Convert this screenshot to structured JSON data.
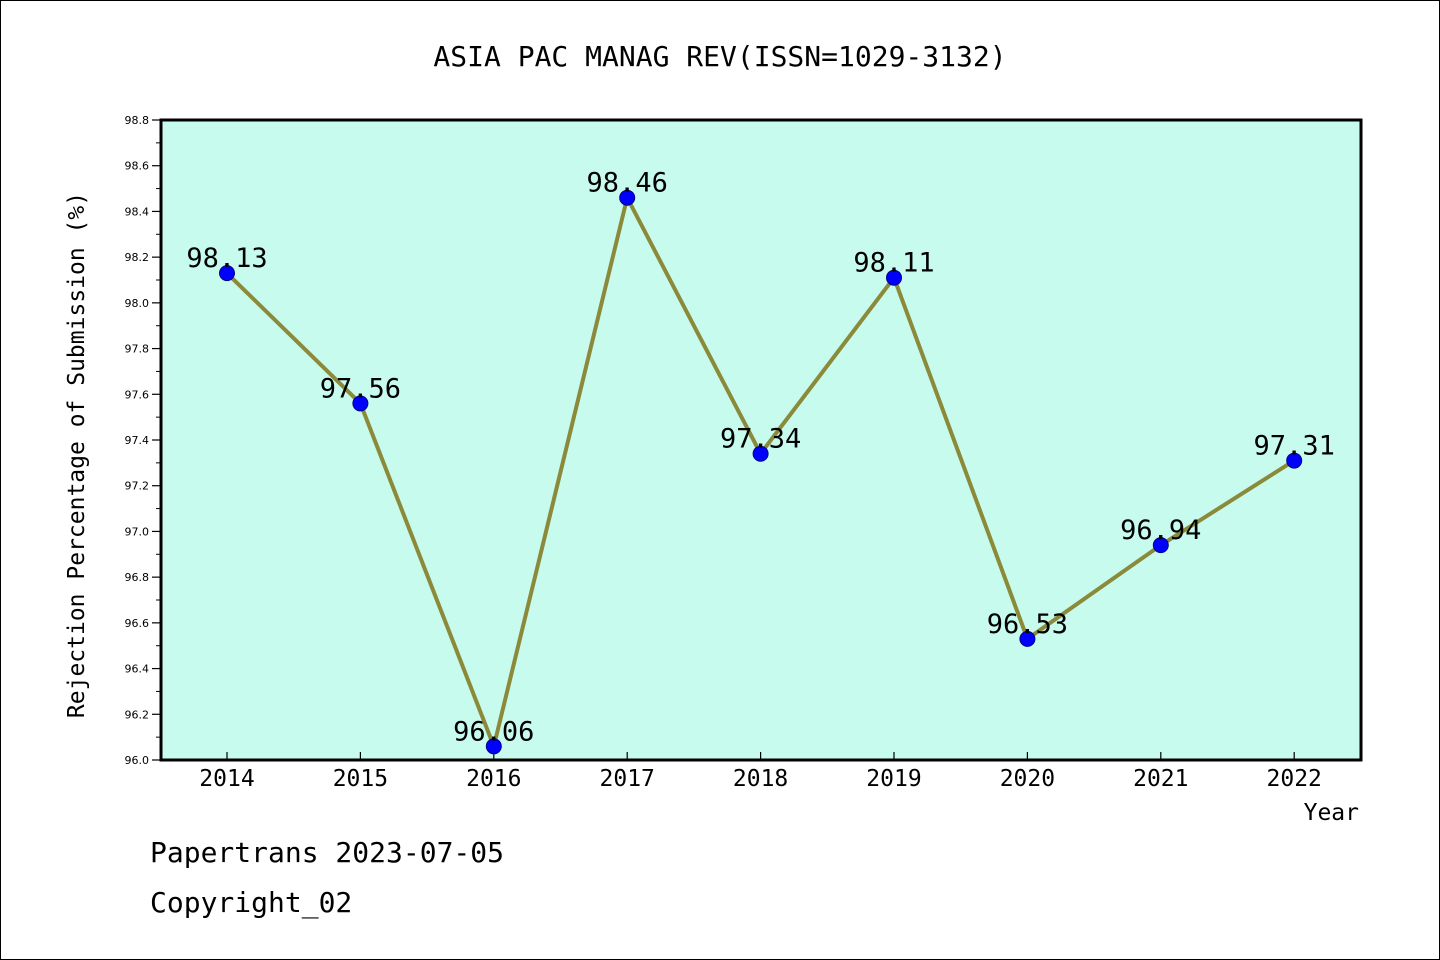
{
  "chart_data": {
    "type": "line",
    "title": "ASIA PAC MANAG REV(ISSN=1029-3132)",
    "xlabel": "Year",
    "ylabel": "Rejection Percentage of Submission (%)",
    "categories": [
      "2014",
      "2015",
      "2016",
      "2017",
      "2018",
      "2019",
      "2020",
      "2021",
      "2022"
    ],
    "values": [
      98.13,
      97.56,
      96.06,
      98.46,
      97.34,
      98.11,
      96.53,
      96.94,
      97.31
    ],
    "data_labels": [
      "98.13",
      "97.56",
      "96.06",
      "98.46",
      "97.34",
      "98.11",
      "96.53",
      "96.94",
      "97.31"
    ],
    "ylim": [
      96.0,
      98.8
    ],
    "yticks": [
      "96.0",
      "96.2",
      "96.4",
      "96.6",
      "96.8",
      "97.0",
      "97.2",
      "97.4",
      "97.6",
      "97.8",
      "98.0",
      "98.2",
      "98.4",
      "98.6",
      "98.8"
    ],
    "grid": false,
    "colors": {
      "plot_background": "#c7fbee",
      "line": "#8b8a3a",
      "marker": "#0000ff",
      "marker_edge": "#00008b"
    }
  },
  "footer": {
    "line1": "Papertrans 2023-07-05",
    "line2": "Copyright_02"
  }
}
